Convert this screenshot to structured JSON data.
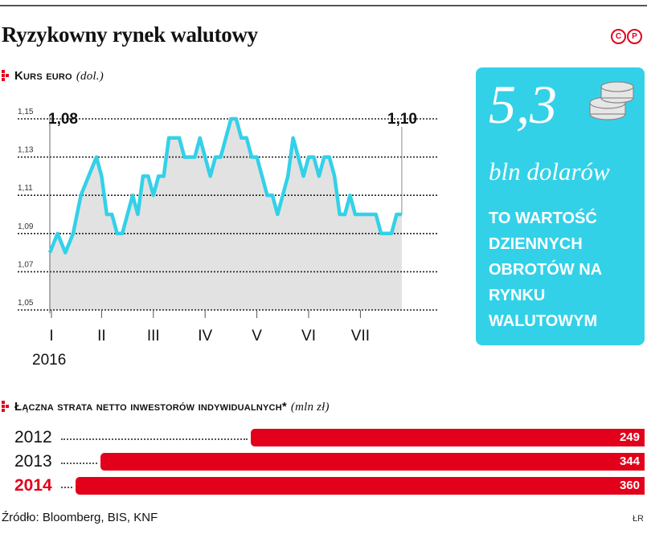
{
  "header": {
    "title": "Ryzykowny rynek walutowy",
    "logo_text": "CP"
  },
  "colors": {
    "accent": "#e2001a",
    "cyan": "#33d1e8",
    "area": "#d8d8d8"
  },
  "line_section": {
    "title": "Kurs euro",
    "unit": "(dol.)"
  },
  "callout": {
    "value": "5,3",
    "unit": "bln dolarów",
    "description": "To wartość dziennych obrotów na rynku walutowym",
    "icon": "coins-icon"
  },
  "bar_section": {
    "title": "Łączna strata netto inwestorów indywidualnych*",
    "unit": "(mln zł)"
  },
  "source": "Źródło: Bloomberg, BIS, KNF",
  "credit": "ŁR",
  "chart_data": [
    {
      "type": "line",
      "title": "Kurs euro",
      "ylabel": "(dol.)",
      "ylim": [
        1.05,
        1.15
      ],
      "yticks": [
        "1,05",
        "1,07",
        "1,09",
        "1,11",
        "1,13",
        "1,15"
      ],
      "x_tick_labels": [
        "I",
        "II",
        "III",
        "IV",
        "V",
        "VI",
        "VII"
      ],
      "x_year_label": "2016",
      "grid": true,
      "annotations": [
        {
          "label": "1,08",
          "position": "start"
        },
        {
          "label": "1,10",
          "position": "end"
        }
      ],
      "x": [
        0,
        0.15,
        0.3,
        0.45,
        0.6,
        0.75,
        0.9,
        1.0,
        1.1,
        1.2,
        1.3,
        1.4,
        1.5,
        1.6,
        1.7,
        1.8,
        1.9,
        2.0,
        2.1,
        2.2,
        2.3,
        2.4,
        2.5,
        2.6,
        2.7,
        2.8,
        2.9,
        3.0,
        3.1,
        3.2,
        3.3,
        3.4,
        3.5,
        3.6,
        3.7,
        3.8,
        3.9,
        4.0,
        4.1,
        4.2,
        4.3,
        4.4,
        4.5,
        4.6,
        4.7,
        4.8,
        4.9,
        5.0,
        5.1,
        5.2,
        5.3,
        5.4,
        5.5,
        5.6,
        5.7,
        5.8,
        5.9,
        6.0,
        6.1,
        6.2,
        6.3,
        6.4,
        6.5,
        6.6,
        6.7,
        6.8
      ],
      "series": [
        {
          "values": [
            1.08,
            1.09,
            1.08,
            1.09,
            1.11,
            1.12,
            1.13,
            1.12,
            1.1,
            1.1,
            1.09,
            1.09,
            1.1,
            1.11,
            1.1,
            1.12,
            1.12,
            1.11,
            1.12,
            1.12,
            1.14,
            1.14,
            1.14,
            1.13,
            1.13,
            1.13,
            1.14,
            1.13,
            1.12,
            1.13,
            1.13,
            1.14,
            1.15,
            1.15,
            1.14,
            1.14,
            1.13,
            1.13,
            1.12,
            1.11,
            1.11,
            1.1,
            1.11,
            1.12,
            1.14,
            1.13,
            1.12,
            1.13,
            1.13,
            1.12,
            1.13,
            1.13,
            1.12,
            1.1,
            1.1,
            1.11,
            1.1,
            1.1,
            1.1,
            1.1,
            1.1,
            1.09,
            1.09,
            1.09,
            1.1,
            1.1
          ]
        }
      ]
    },
    {
      "type": "bar",
      "title": "Łączna strata netto inwestorów indywidualnych*",
      "ylabel": "(mln zł)",
      "categories": [
        "2012",
        "2013",
        "2014"
      ],
      "values": [
        249,
        344,
        360
      ],
      "highlight": "2014"
    }
  ]
}
